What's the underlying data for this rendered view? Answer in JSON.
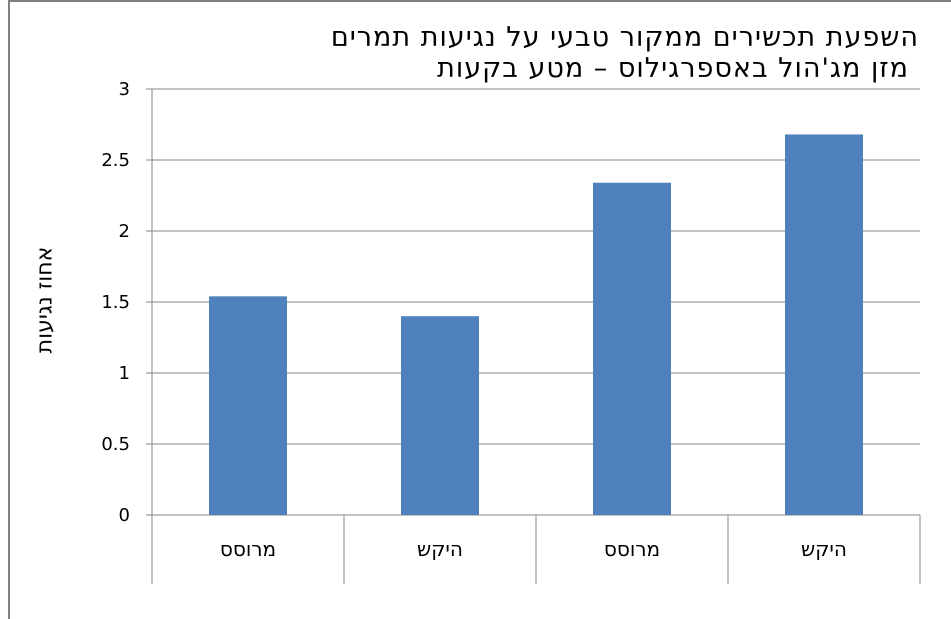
{
  "chart_data": {
    "type": "bar",
    "title_lines": [
      "השפעת תכשירים ממקור טבעי על נגיעות תמרים",
      "מזן מג'הול באספרגילוס – מטע בקעות"
    ],
    "ylabel": "אחוז נגיעות",
    "xlabel": "",
    "categories": [
      "מרוסס",
      "היקש",
      "מרוסס",
      "היקש"
    ],
    "values": [
      1.54,
      1.4,
      2.34,
      2.68
    ],
    "ylim": [
      0,
      3
    ],
    "yticks": [
      "0",
      "0.5",
      "1",
      "1.5",
      "2",
      "2.5",
      "3"
    ],
    "grid": true,
    "legend": "none",
    "bar_color": "#4f81bd"
  }
}
